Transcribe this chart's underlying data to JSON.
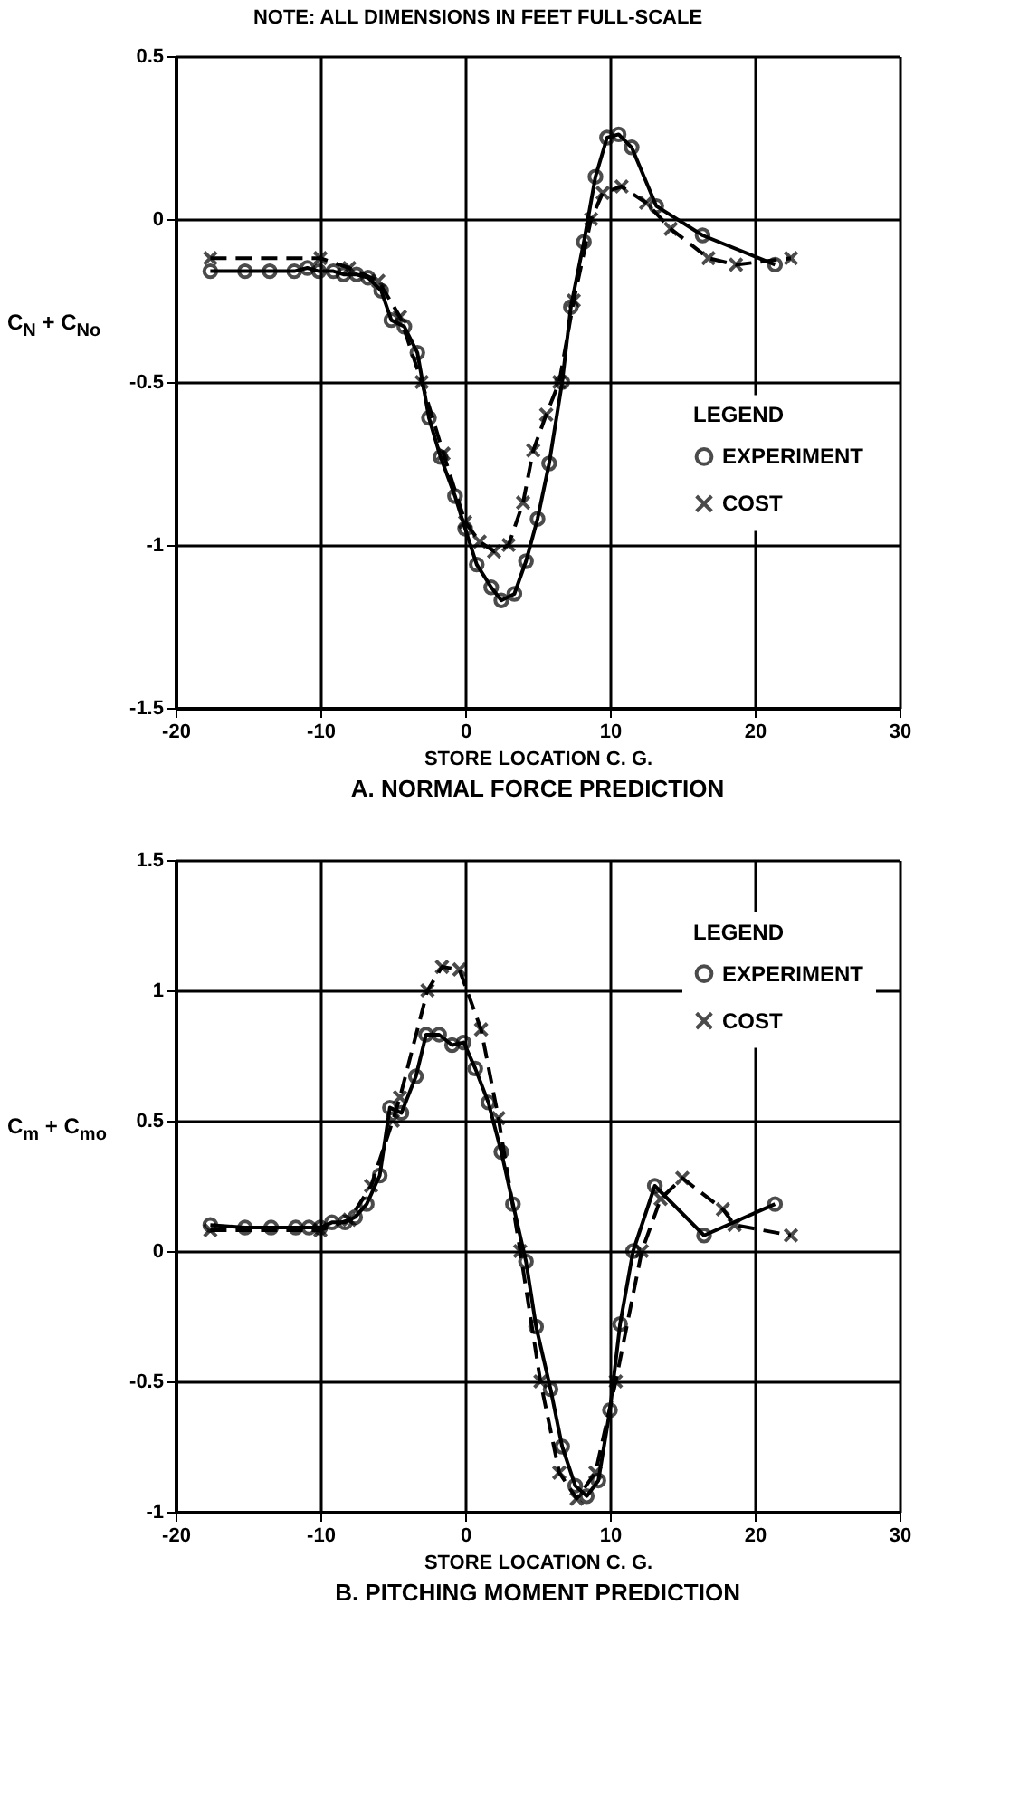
{
  "chart_data": [
    {
      "type": "line",
      "title": "A. NORMAL FORCE PREDICTION",
      "xlabel": "STORE LOCATION C. G.",
      "ylabel": "C$_{N}$ + C$_{No}$",
      "legend_title": "LEGEND",
      "annotations": [
        "NOTE:   ALL DIMENSIONS IN FEET FULL-SCALE"
      ],
      "xlim": [
        -20,
        30
      ],
      "xticks": [
        -20,
        -10,
        0,
        10,
        20,
        30
      ],
      "ylim": [
        -1.5,
        0.5
      ],
      "yticks": [
        -1.5,
        -1,
        -0.5,
        0,
        0.5
      ],
      "grid": true,
      "legend": "bottom right",
      "series": [
        {
          "name": "EXPERIMENT",
          "color": "#000000",
          "marker": "circle",
          "line_style": "solid",
          "x": [
            -17.6,
            -15.2,
            -13.5,
            -11.8,
            -10.9,
            -10.1,
            -9.1,
            -8.4,
            -7.5,
            -6.7,
            -5.8,
            -5.1,
            -4.2,
            -3.3,
            -2.5,
            -1.7,
            -0.7,
            0.0,
            0.8,
            1.8,
            2.5,
            3.4,
            4.2,
            5.0,
            5.8,
            6.7,
            7.3,
            8.2,
            9.0,
            9.8,
            10.6,
            11.5,
            13.2,
            16.4,
            21.4
          ],
          "values": [
            -0.16,
            -0.16,
            -0.16,
            -0.16,
            -0.15,
            -0.16,
            -0.16,
            -0.17,
            -0.17,
            -0.18,
            -0.22,
            -0.31,
            -0.33,
            -0.41,
            -0.61,
            -0.73,
            -0.85,
            -0.95,
            -1.06,
            -1.13,
            -1.17,
            -1.15,
            -1.05,
            -0.92,
            -0.75,
            -0.5,
            -0.27,
            -0.07,
            0.13,
            0.25,
            0.26,
            0.22,
            0.04,
            -0.05,
            -0.14
          ]
        },
        {
          "name": "COST",
          "color": "#000000",
          "marker": "cross",
          "line_style": "dashed",
          "x": [
            -17.6,
            -10,
            -8,
            -6,
            -4.5,
            -3,
            -1.5,
            0,
            1,
            2,
            3,
            4,
            4.7,
            5.6,
            6.5,
            7.5,
            8.7,
            9.5,
            10.8,
            12.5,
            14.2,
            16.8,
            18.7,
            22.5
          ],
          "values": [
            -0.12,
            -0.12,
            -0.15,
            -0.19,
            -0.3,
            -0.5,
            -0.72,
            -0.93,
            -0.99,
            -1.02,
            -1.0,
            -0.87,
            -0.71,
            -0.6,
            -0.5,
            -0.25,
            0.0,
            0.08,
            0.1,
            0.05,
            -0.03,
            -0.12,
            -0.14,
            -0.12
          ]
        }
      ]
    },
    {
      "type": "line",
      "title": "B. PITCHING MOMENT PREDICTION",
      "xlabel": "STORE LOCATION C. G.",
      "ylabel": "C$_{m}$ + C$_{mo}$",
      "legend_title": "LEGEND",
      "xlim": [
        -20,
        30
      ],
      "xticks": [
        -20,
        -10,
        0,
        10,
        20,
        30
      ],
      "ylim": [
        -1,
        1.5
      ],
      "yticks": [
        -1,
        -0.5,
        0,
        0.5,
        1,
        1.5
      ],
      "grid": true,
      "legend": "top right",
      "series": [
        {
          "name": "EXPERIMENT",
          "color": "#000000",
          "marker": "circle",
          "line_style": "solid",
          "x": [
            -17.6,
            -15.2,
            -13.4,
            -11.7,
            -10.8,
            -10.0,
            -9.2,
            -8.3,
            -7.6,
            -6.8,
            -5.9,
            -5.2,
            -4.4,
            -3.4,
            -2.7,
            -1.8,
            -0.9,
            -0.1,
            0.7,
            1.6,
            2.5,
            3.3,
            4.2,
            4.9,
            5.9,
            6.7,
            7.6,
            8.4,
            9.2,
            10.0,
            10.7,
            11.6,
            13.1,
            16.5,
            21.4
          ],
          "values": [
            0.1,
            0.09,
            0.09,
            0.09,
            0.09,
            0.09,
            0.11,
            0.11,
            0.13,
            0.18,
            0.29,
            0.55,
            0.53,
            0.67,
            0.83,
            0.83,
            0.79,
            0.8,
            0.7,
            0.57,
            0.38,
            0.18,
            -0.04,
            -0.29,
            -0.53,
            -0.75,
            -0.9,
            -0.94,
            -0.88,
            -0.61,
            -0.28,
            0.0,
            0.25,
            0.06,
            0.18
          ]
        },
        {
          "name": "COST",
          "color": "#000000",
          "marker": "cross",
          "line_style": "dashed",
          "x": [
            -17.6,
            -10,
            -8,
            -6.5,
            -5,
            -4.5,
            -2.6,
            -1.6,
            -0.4,
            1.1,
            2.3,
            3.8,
            5.2,
            6.5,
            7.7,
            9,
            10.4,
            12.2,
            13.5,
            15,
            17.8,
            18.6,
            22.5
          ],
          "values": [
            0.08,
            0.08,
            0.12,
            0.25,
            0.5,
            0.59,
            1.0,
            1.09,
            1.08,
            0.85,
            0.51,
            0.0,
            -0.5,
            -0.85,
            -0.95,
            -0.85,
            -0.5,
            0.0,
            0.2,
            0.28,
            0.16,
            0.1,
            0.06
          ]
        }
      ]
    }
  ]
}
